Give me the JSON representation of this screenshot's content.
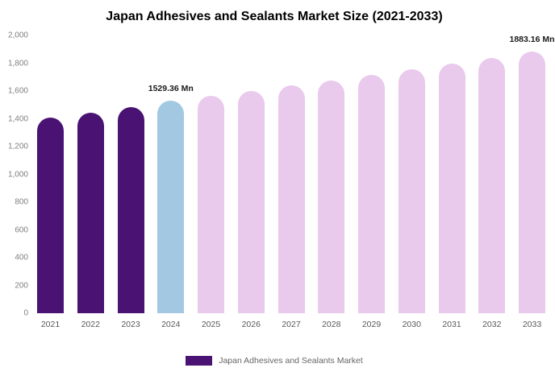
{
  "chart_data": {
    "type": "bar",
    "title": "Japan Adhesives and Sealants Market Size (2021-2033)",
    "categories": [
      "2021",
      "2022",
      "2023",
      "2024",
      "2025",
      "2026",
      "2027",
      "2028",
      "2029",
      "2030",
      "2031",
      "2032",
      "2033"
    ],
    "values": [
      1410,
      1445,
      1485,
      1529.36,
      1565,
      1602,
      1639,
      1677,
      1716,
      1757,
      1798,
      1840,
      1883.16
    ],
    "unit": "Mn",
    "xlabel": "",
    "ylabel": "",
    "ylim": [
      0,
      2000
    ],
    "ytick_step": 200,
    "grid": false,
    "legend_position": "bottom",
    "colors": {
      "historical": "#4A1272",
      "highlight": "#A2C8E2",
      "forecast": "#E9C9EC"
    },
    "bar_colors": [
      "#4A1272",
      "#4A1272",
      "#4A1272",
      "#A2C8E2",
      "#E9C9EC",
      "#E9C9EC",
      "#E9C9EC",
      "#E9C9EC",
      "#E9C9EC",
      "#E9C9EC",
      "#E9C9EC",
      "#E9C9EC",
      "#E9C9EC"
    ],
    "annotations": [
      {
        "category": "2024",
        "text": "1529.36 Mn"
      },
      {
        "category": "2033",
        "text": "1883.16 Mn"
      }
    ]
  },
  "legend": {
    "label": "Japan Adhesives and Sealants Market",
    "swatch_color": "#4A1272"
  }
}
